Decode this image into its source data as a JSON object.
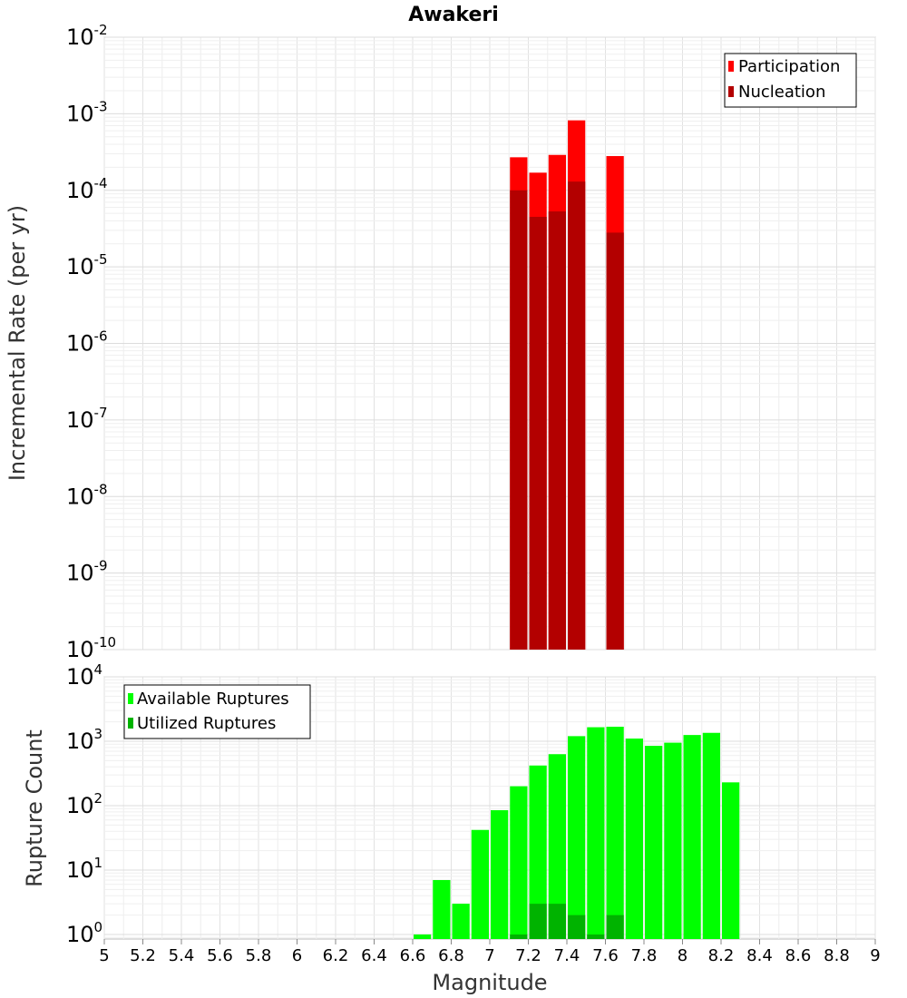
{
  "chart_data": [
    {
      "type": "bar",
      "title": "Awakeri",
      "xlabel": "Magnitude",
      "ylabel": "Incremental Rate (per yr)",
      "yscale": "log",
      "xlim": [
        5,
        9
      ],
      "ylim": [
        1e-10,
        0.01
      ],
      "ytick_exponents": [
        "-10",
        "-9",
        "-8",
        "-7",
        "-6",
        "-5",
        "-4",
        "-3",
        "-2"
      ],
      "legend_position": "top-right",
      "series": [
        {
          "name": "Participation",
          "color": "#ff0000",
          "x": [
            7.15,
            7.25,
            7.35,
            7.45,
            7.65
          ],
          "values": [
            0.00027,
            0.00017,
            0.00029,
            0.00082,
            0.00028
          ]
        },
        {
          "name": "Nucleation",
          "color": "#b30000",
          "x": [
            7.15,
            7.25,
            7.35,
            7.45,
            7.65
          ],
          "values": [
            0.0001,
            4.5e-05,
            5.3e-05,
            0.00013,
            2.8e-05
          ]
        }
      ]
    },
    {
      "type": "bar",
      "xlabel": "Magnitude",
      "ylabel": "Rupture Count",
      "yscale": "log",
      "xlim": [
        5,
        9
      ],
      "ylim": [
        0.85,
        10000
      ],
      "ytick_exponents": [
        "0",
        "1",
        "2",
        "3",
        "4"
      ],
      "xticks": [
        "5",
        "5.2",
        "5.4",
        "5.6",
        "5.8",
        "6",
        "6.2",
        "6.4",
        "6.6",
        "6.8",
        "7",
        "7.2",
        "7.4",
        "7.6",
        "7.8",
        "8",
        "8.2",
        "8.4",
        "8.6",
        "8.8",
        "9"
      ],
      "legend_position": "top-left",
      "series": [
        {
          "name": "Available Ruptures",
          "color": "#00ff00",
          "x": [
            6.65,
            6.75,
            6.85,
            6.95,
            7.05,
            7.15,
            7.25,
            7.35,
            7.45,
            7.55,
            7.65,
            7.75,
            7.85,
            7.95,
            8.05,
            8.15,
            8.25
          ],
          "values": [
            1,
            7,
            3,
            42,
            85,
            200,
            420,
            630,
            1200,
            1650,
            1680,
            1100,
            850,
            950,
            1250,
            1350,
            230
          ]
        },
        {
          "name": "Utilized Ruptures",
          "color": "#00b300",
          "x": [
            7.15,
            7.25,
            7.35,
            7.45,
            7.55,
            7.65
          ],
          "values": [
            1,
            3,
            3,
            2,
            1,
            2
          ]
        }
      ]
    }
  ]
}
